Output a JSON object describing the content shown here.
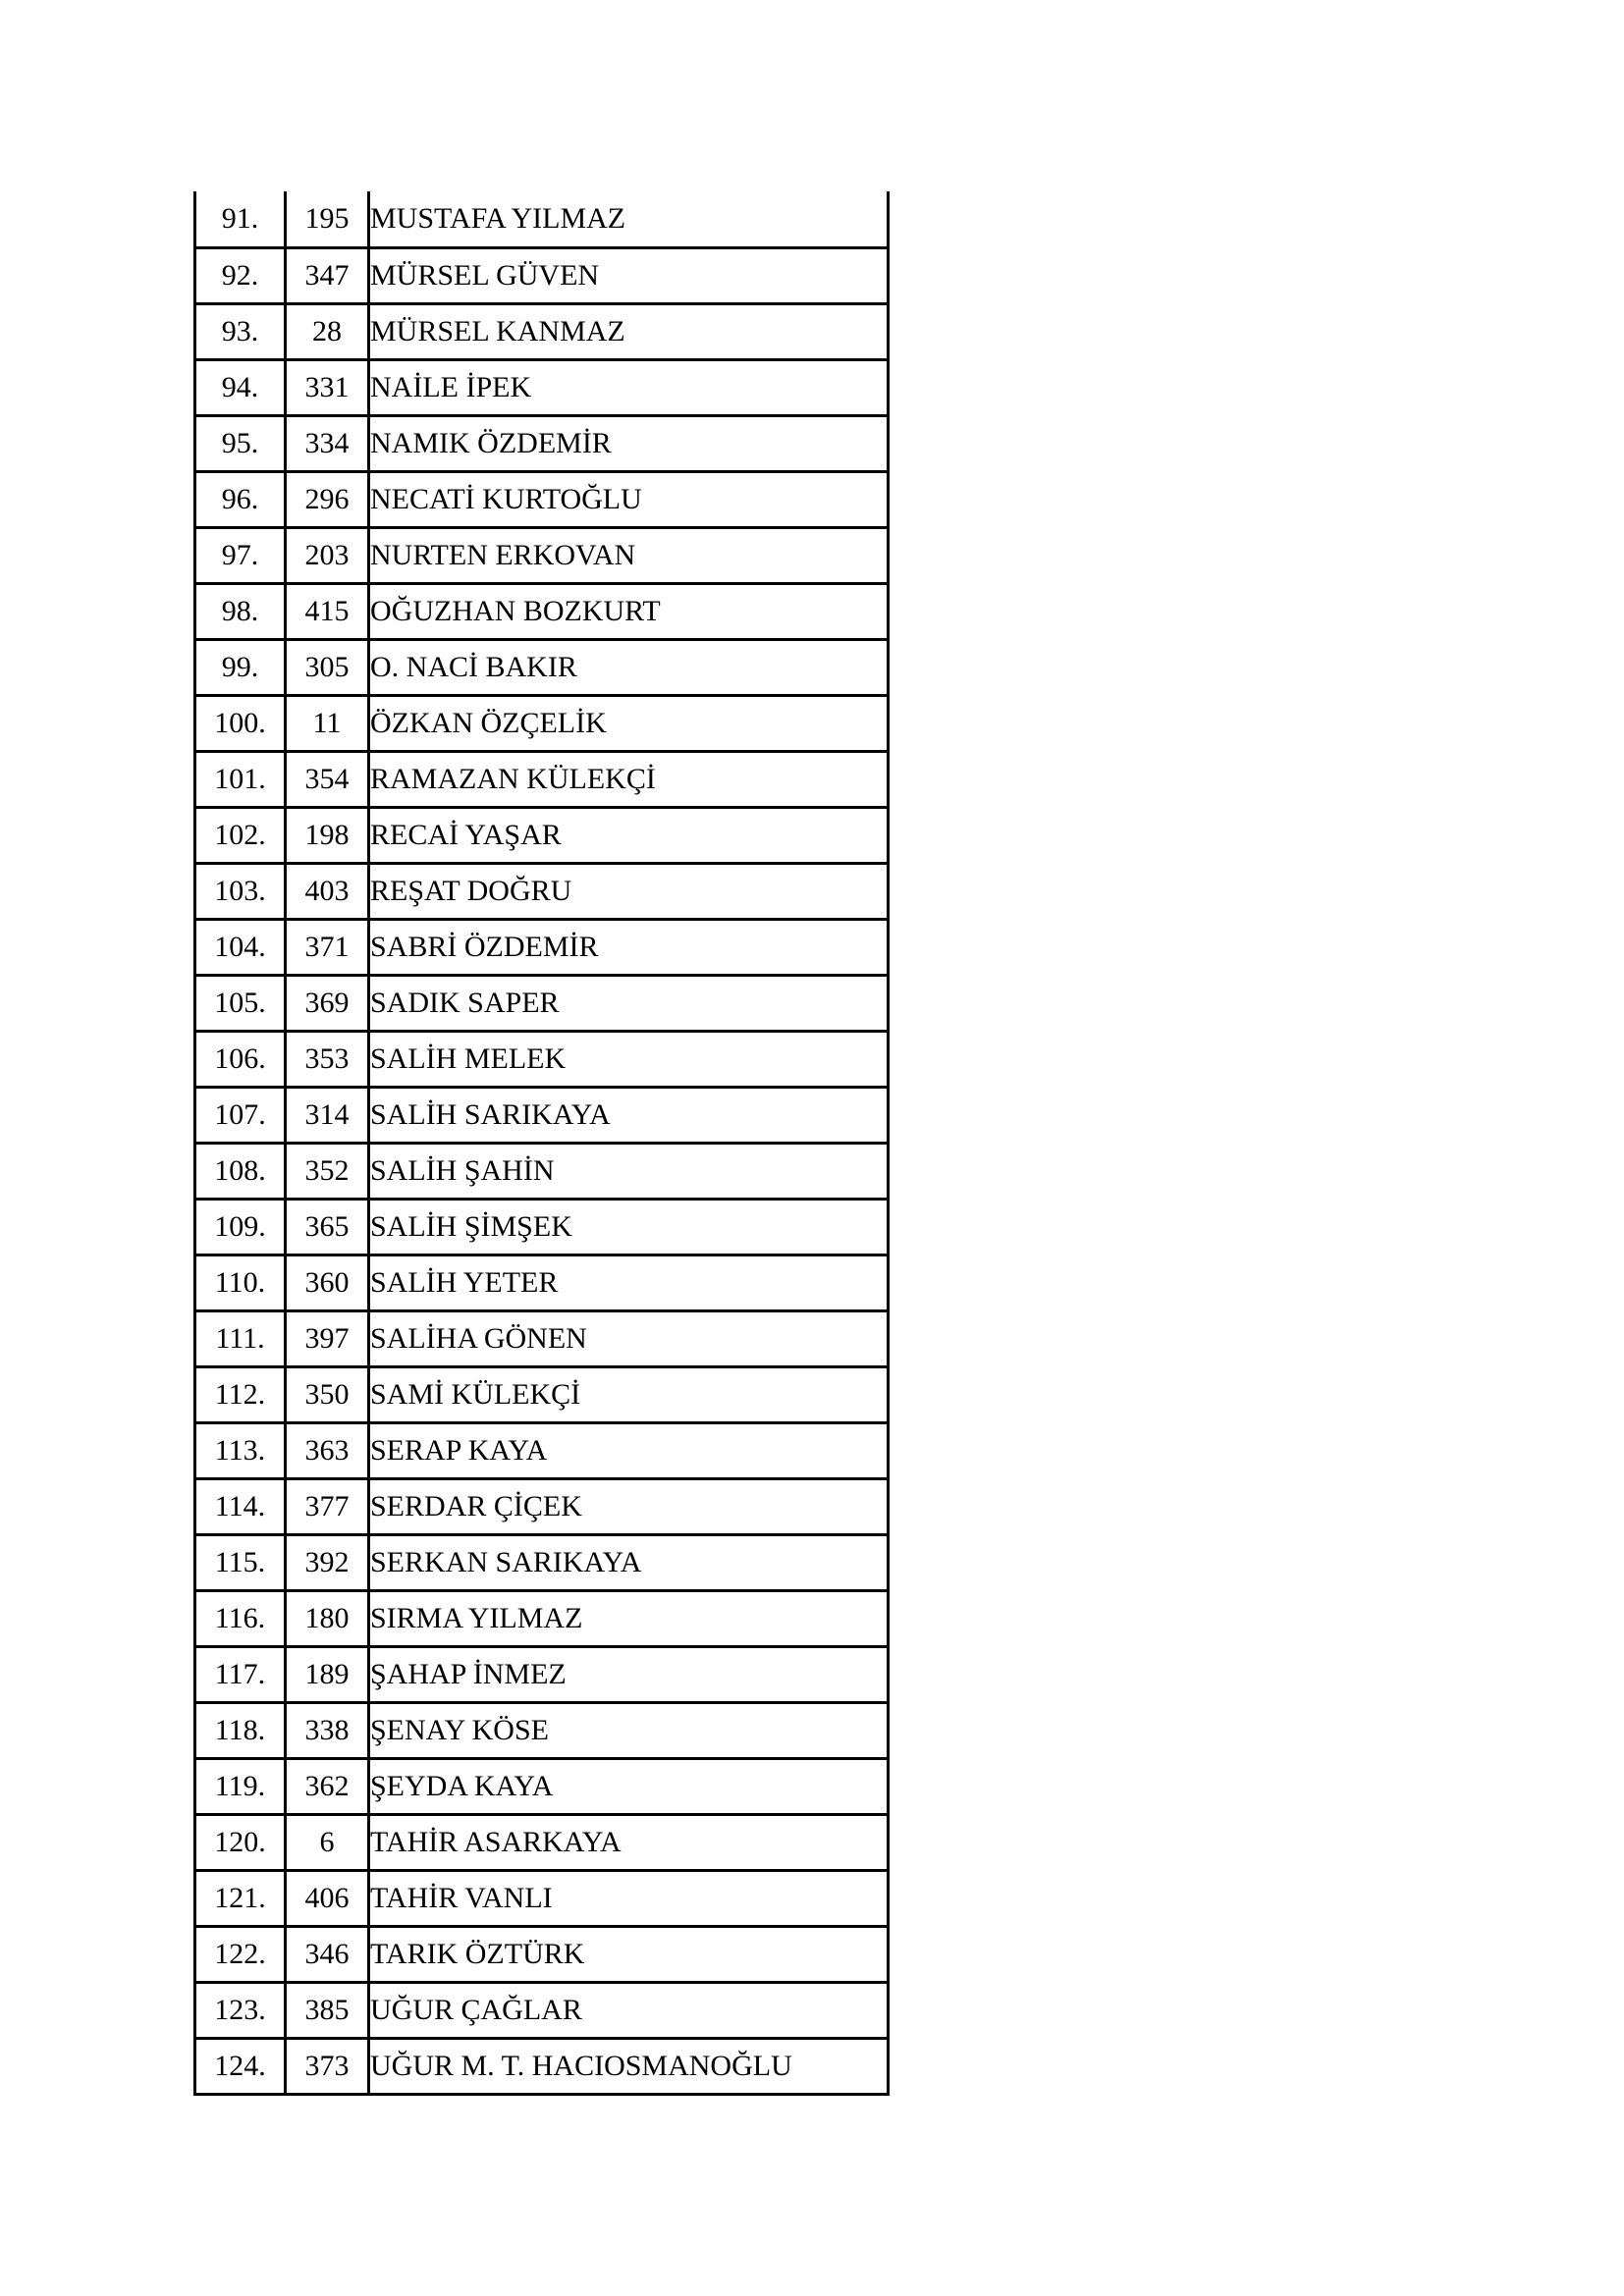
{
  "page": {
    "background_color": "#ffffff",
    "text_color": "#000000",
    "border_color": "#000000"
  },
  "table": {
    "columns": [
      "rank",
      "number",
      "name"
    ],
    "rows": [
      {
        "rank": "91.",
        "number": "195",
        "name": "MUSTAFA YILMAZ"
      },
      {
        "rank": "92.",
        "number": "347",
        "name": "MÜRSEL GÜVEN"
      },
      {
        "rank": "93.",
        "number": "28",
        "name": "MÜRSEL KANMAZ"
      },
      {
        "rank": "94.",
        "number": "331",
        "name": "NAİLE İPEK"
      },
      {
        "rank": "95.",
        "number": "334",
        "name": "NAMIK ÖZDEMİR"
      },
      {
        "rank": "96.",
        "number": "296",
        "name": "NECATİ KURTOĞLU"
      },
      {
        "rank": "97.",
        "number": "203",
        "name": "NURTEN ERKOVAN"
      },
      {
        "rank": "98.",
        "number": "415",
        "name": "OĞUZHAN BOZKURT"
      },
      {
        "rank": "99.",
        "number": "305",
        "name": "O. NACİ BAKIR"
      },
      {
        "rank": "100.",
        "number": "11",
        "name": "ÖZKAN ÖZÇELİK"
      },
      {
        "rank": "101.",
        "number": "354",
        "name": "RAMAZAN KÜLEKÇİ"
      },
      {
        "rank": "102.",
        "number": "198",
        "name": "RECAİ YAŞAR"
      },
      {
        "rank": "103.",
        "number": "403",
        "name": "REŞAT DOĞRU"
      },
      {
        "rank": "104.",
        "number": "371",
        "name": "SABRİ ÖZDEMİR"
      },
      {
        "rank": "105.",
        "number": "369",
        "name": "SADIK SAPER"
      },
      {
        "rank": "106.",
        "number": "353",
        "name": "SALİH MELEK"
      },
      {
        "rank": "107.",
        "number": "314",
        "name": "SALİH SARIKAYA"
      },
      {
        "rank": "108.",
        "number": "352",
        "name": "SALİH ŞAHİN"
      },
      {
        "rank": "109.",
        "number": "365",
        "name": "SALİH ŞİMŞEK"
      },
      {
        "rank": "110.",
        "number": "360",
        "name": "SALİH YETER"
      },
      {
        "rank": "111.",
        "number": "397",
        "name": "SALİHA GÖNEN"
      },
      {
        "rank": "112.",
        "number": "350",
        "name": "SAMİ KÜLEKÇİ"
      },
      {
        "rank": "113.",
        "number": "363",
        "name": "SERAP KAYA"
      },
      {
        "rank": "114.",
        "number": "377",
        "name": "SERDAR ÇİÇEK"
      },
      {
        "rank": "115.",
        "number": "392",
        "name": "SERKAN SARIKAYA"
      },
      {
        "rank": "116.",
        "number": "180",
        "name": "SIRMA YILMAZ"
      },
      {
        "rank": "117.",
        "number": "189",
        "name": "ŞAHAP İNMEZ"
      },
      {
        "rank": "118.",
        "number": "338",
        "name": "ŞENAY KÖSE"
      },
      {
        "rank": "119.",
        "number": "362",
        "name": "ŞEYDA KAYA"
      },
      {
        "rank": "120.",
        "number": "6",
        "name": "TAHİR ASARKAYA"
      },
      {
        "rank": "121.",
        "number": "406",
        "name": "TAHİR VANLI"
      },
      {
        "rank": "122.",
        "number": "346",
        "name": "TARIK ÖZTÜRK"
      },
      {
        "rank": "123.",
        "number": "385",
        "name": "UĞUR ÇAĞLAR"
      },
      {
        "rank": "124.",
        "number": "373",
        "name": "UĞUR M. T. HACIOSMANOĞLU"
      }
    ]
  }
}
